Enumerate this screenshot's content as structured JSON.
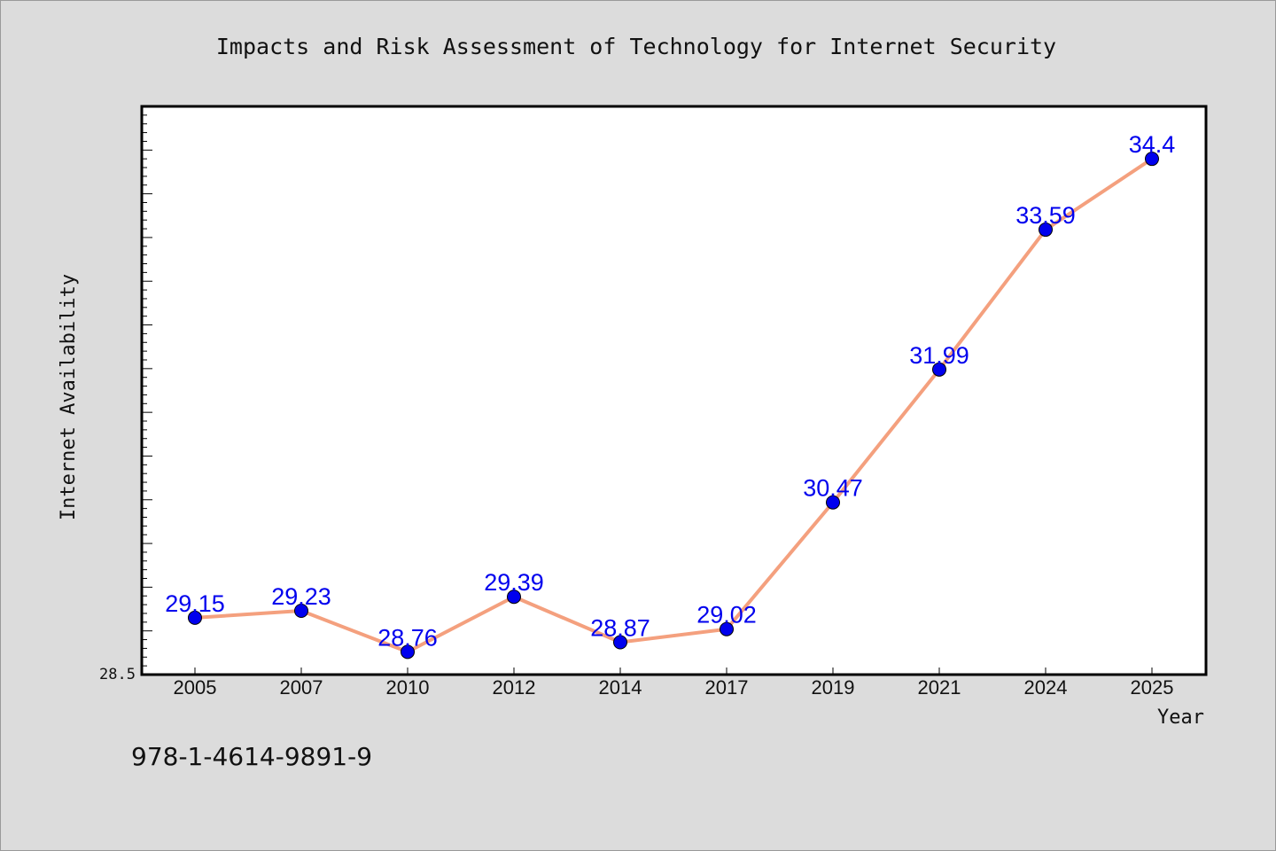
{
  "chart_data": {
    "type": "line",
    "title": "Impacts and Risk Assessment of Technology for Internet Security",
    "xlabel": "Year",
    "ylabel": "Internet Availability",
    "categories": [
      "2005",
      "2007",
      "2010",
      "2012",
      "2014",
      "2017",
      "2019",
      "2021",
      "2024",
      "2025"
    ],
    "series": [
      {
        "values": [
          29.15,
          29.23,
          28.76,
          29.39,
          28.87,
          29.02,
          30.47,
          31.99,
          33.59,
          34.4
        ],
        "labels": [
          "29.15",
          "29.23",
          "28.76",
          "29.39",
          "28.87",
          "29.02",
          "30.47",
          "31.99",
          "33.59",
          "34.4"
        ]
      }
    ],
    "ylim": [
      28.5,
      35.0
    ],
    "ytick_labels": [
      "28.5"
    ],
    "grid": false,
    "colors": {
      "line": "#f4a07e",
      "marker": "#0000ee",
      "data_label": "#0000ee",
      "background": "#dcdcdc",
      "plot_background": "#ffffff"
    }
  },
  "footnote": "978-1-4614-9891-9"
}
